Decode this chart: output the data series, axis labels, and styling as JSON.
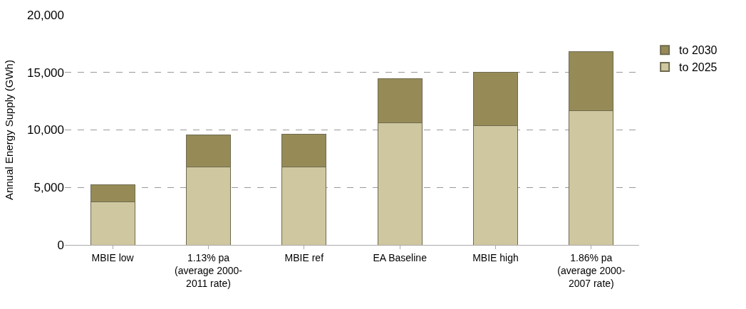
{
  "chart_data": {
    "type": "bar",
    "stacked": true,
    "ylabel": "Annual Energy Supply (GWh)",
    "categories": [
      "MBIE low",
      "1.13% pa\n(average 2000-\n2011 rate)",
      "MBIE ref",
      "EA Baseline",
      "MBIE high",
      "1.86% pa\n(average 2000-\n2007 rate)"
    ],
    "series": [
      {
        "name": "to 2025",
        "color": "#cfc79f",
        "values": [
          3750,
          6750,
          6750,
          10600,
          10350,
          11650
        ]
      },
      {
        "name": "to 2030",
        "color": "#968b57",
        "values": [
          1500,
          2800,
          2900,
          3850,
          4650,
          5150
        ]
      }
    ],
    "ylim": [
      0,
      20000
    ],
    "yticks": [
      {
        "value": 0,
        "label": "0"
      },
      {
        "value": 5000,
        "label": "5,000"
      },
      {
        "value": 10000,
        "label": "10,000"
      },
      {
        "value": 15000,
        "label": "15,000"
      },
      {
        "value": 20000,
        "label": "20,000"
      }
    ],
    "grid": "y",
    "legend": "right"
  }
}
